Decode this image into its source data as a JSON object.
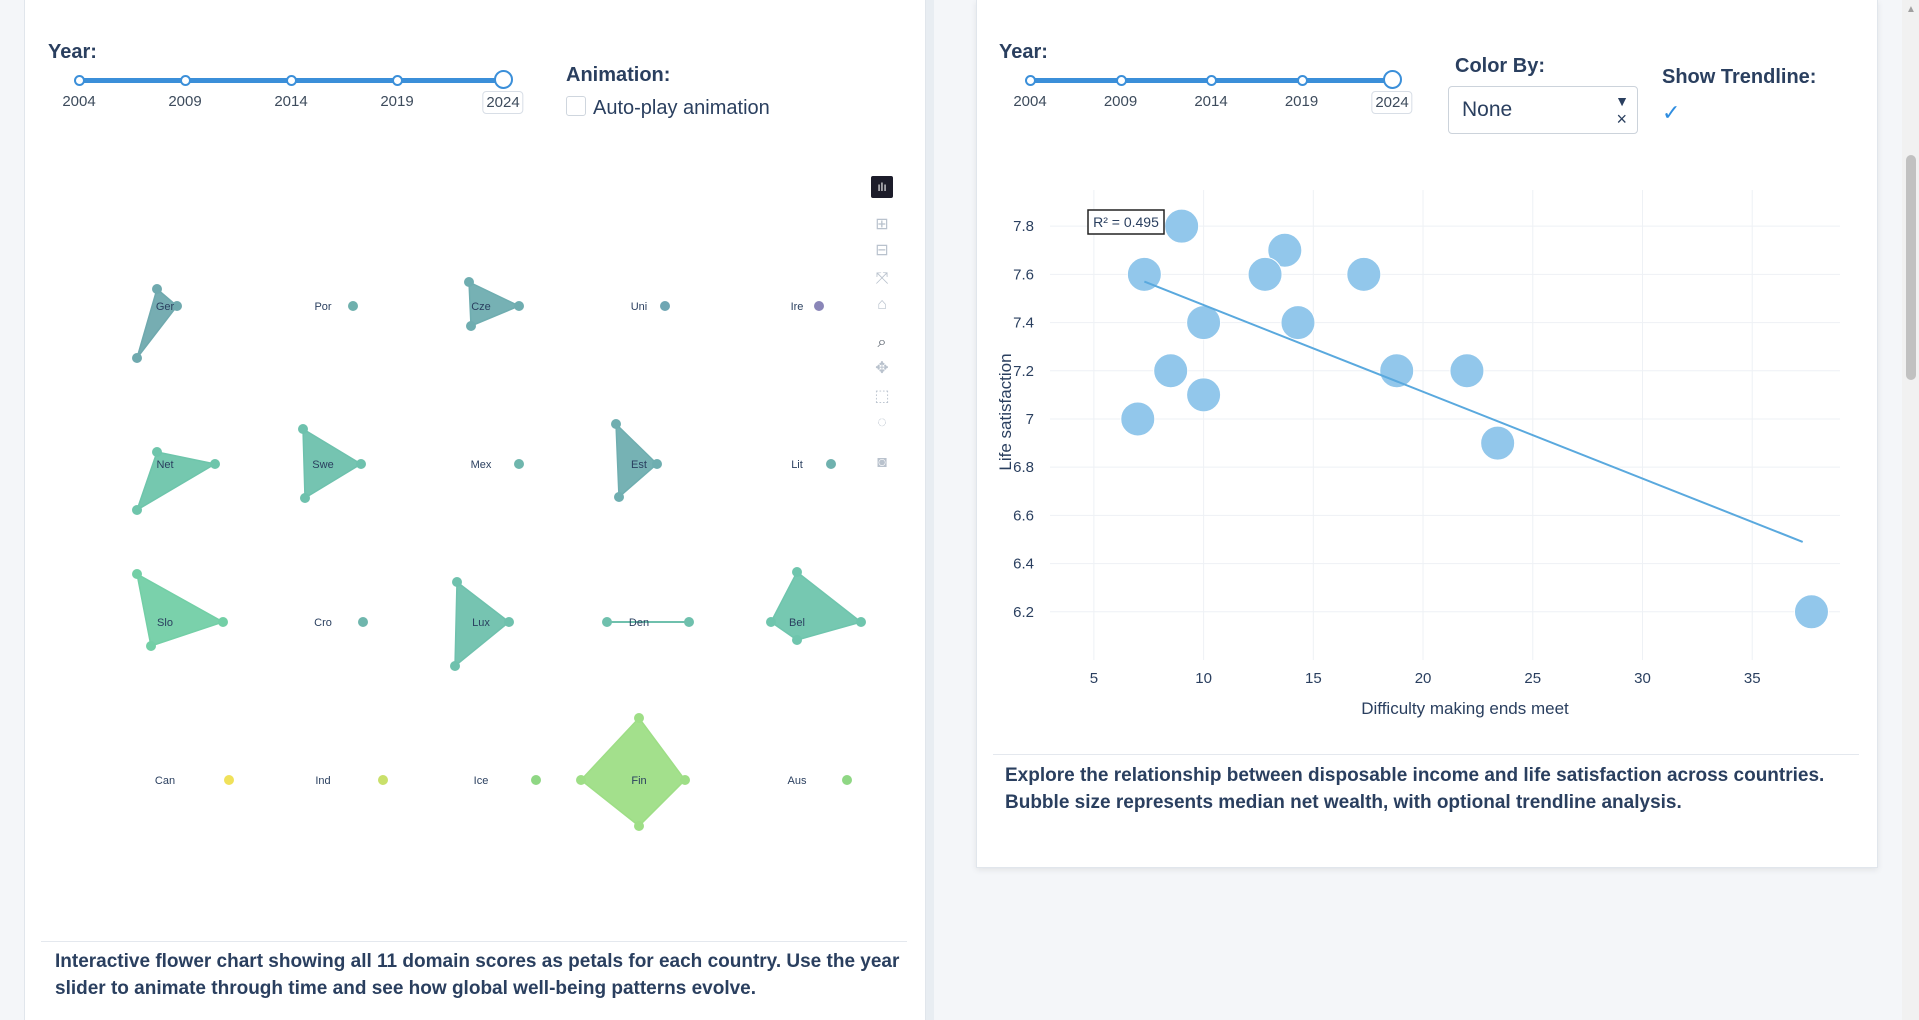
{
  "left": {
    "year_label": "Year:",
    "slider_ticks": [
      "2004",
      "2009",
      "2014",
      "2019",
      "2024"
    ],
    "slider_value": "2024",
    "animation_label": "Animation:",
    "autoplay_label": "Auto-play animation",
    "autoplay_checked": false,
    "description": "Interactive flower chart showing all 11 domain scores as petals for each country. Use the year slider to animate through time and see how global well-being patterns evolve.",
    "modebar_icons": [
      "plotly-logo-icon",
      "zoom-in-icon",
      "zoom-out-icon",
      "autoscale-icon",
      "reset-axes-icon",
      "zoom-icon",
      "pan-icon",
      "box-select-icon",
      "lasso-select-icon",
      "camera-icon"
    ],
    "flowers": [
      {
        "label": "Ger",
        "color": "#6fa9ae"
      },
      {
        "label": "Por",
        "color": "#6fb0ad"
      },
      {
        "label": "Cze",
        "color": "#6fadb0"
      },
      {
        "label": "Uni",
        "color": "#6fa6b3"
      },
      {
        "label": "Ire",
        "color": "#8a86b8"
      },
      {
        "label": "Net",
        "color": "#6ec5ab"
      },
      {
        "label": "Swe",
        "color": "#6ec1ad"
      },
      {
        "label": "Mex",
        "color": "#6fb6ad"
      },
      {
        "label": "Est",
        "color": "#6faeb0"
      },
      {
        "label": "Lit",
        "color": "#6fb1ae"
      },
      {
        "label": "Slo",
        "color": "#73cfa6"
      },
      {
        "label": "Cro",
        "color": "#6fb6ad"
      },
      {
        "label": "Lux",
        "color": "#6fc1ad"
      },
      {
        "label": "Den",
        "color": "#6fc0ad"
      },
      {
        "label": "Bel",
        "color": "#6fc5ad"
      },
      {
        "label": "Can",
        "color": "#f0e15a"
      },
      {
        "label": "Ind",
        "color": "#c9e06a"
      },
      {
        "label": "Ice",
        "color": "#8fd784"
      },
      {
        "label": "Fin",
        "color": "#9ede86"
      },
      {
        "label": "Aus",
        "color": "#8fd784"
      }
    ]
  },
  "right": {
    "year_label": "Year:",
    "slider_ticks": [
      "2004",
      "2009",
      "2014",
      "2019",
      "2024"
    ],
    "slider_value": "2024",
    "color_by_label": "Color By:",
    "color_by_value": "None",
    "trendline_label": "Show Trendline:",
    "trendline_checked": true,
    "description": "Explore the relationship between disposable income and life satisfaction across countries. Bubble size represents median net wealth, with optional trendline analysis."
  },
  "chart_data": {
    "type": "scatter",
    "xlabel": "Difficulty making ends meet",
    "ylabel": "Life satisfaction",
    "xlim": [
      3,
      39
    ],
    "ylim": [
      6.0,
      7.95
    ],
    "xticks": [
      5,
      10,
      15,
      20,
      25,
      30,
      35
    ],
    "yticks": [
      6.2,
      6.4,
      6.6,
      6.8,
      7,
      7.2,
      7.4,
      7.6,
      7.8
    ],
    "ytick_labels": [
      "6.2",
      "6.4",
      "6.6",
      "6.8",
      "7",
      "7.2",
      "7.4",
      "7.6",
      "7.8"
    ],
    "points": [
      {
        "x": 9.0,
        "y": 7.8
      },
      {
        "x": 7.3,
        "y": 7.6
      },
      {
        "x": 10.0,
        "y": 7.4
      },
      {
        "x": 8.5,
        "y": 7.2
      },
      {
        "x": 10.0,
        "y": 7.1
      },
      {
        "x": 7.0,
        "y": 7.0
      },
      {
        "x": 13.7,
        "y": 7.7
      },
      {
        "x": 12.8,
        "y": 7.6
      },
      {
        "x": 14.3,
        "y": 7.4
      },
      {
        "x": 17.3,
        "y": 7.6
      },
      {
        "x": 18.8,
        "y": 7.2
      },
      {
        "x": 22.0,
        "y": 7.2
      },
      {
        "x": 23.4,
        "y": 6.9
      },
      {
        "x": 37.7,
        "y": 6.2
      }
    ],
    "trendline": {
      "x": [
        7.3,
        37.3
      ],
      "y": [
        7.57,
        6.49
      ]
    },
    "annotation": "R² = 0.495",
    "point_color": "#8cc4ea",
    "line_color": "#5aa9de",
    "grid": true
  }
}
